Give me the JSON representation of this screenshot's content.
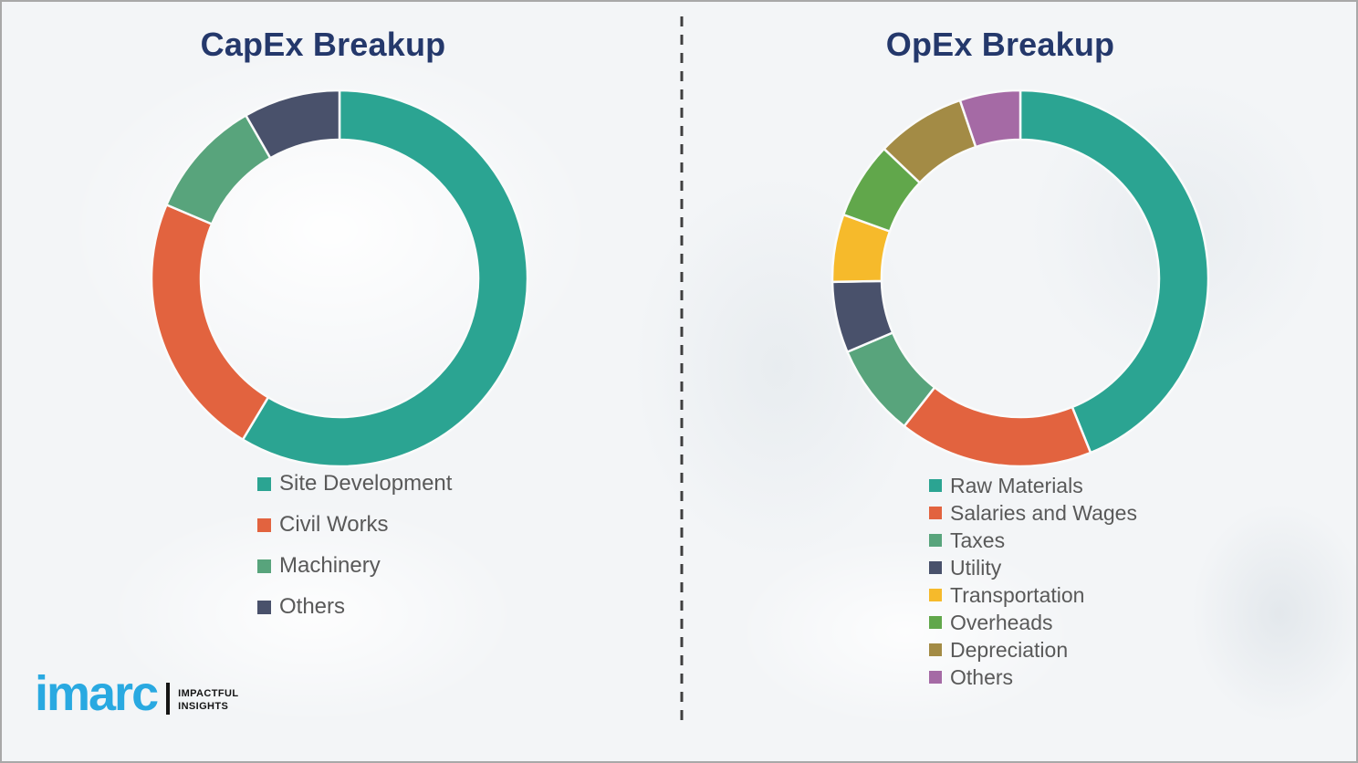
{
  "page": {
    "background_color": "#f3f5f7",
    "frame_border_color": "#a8a8a8",
    "divider_style": "vertical dashed line, center",
    "divider_color": "#3f3f3f"
  },
  "logo": {
    "brand": "imarc",
    "brand_color": "#29A9E1",
    "tagline_line1": "IMPACTFUL",
    "tagline_line2": "INSIGHTS"
  },
  "chart_data": [
    {
      "type": "pie",
      "variant": "donut",
      "title": "CapEx Breakup",
      "title_color": "#24386B",
      "legend_position": "below-left",
      "note": "no numeric labels shown; segment shares estimated from arc angles",
      "categories": [
        "Site Development",
        "Civil Works",
        "Machinery",
        "Others"
      ],
      "values": [
        58.6,
        22.8,
        10.3,
        8.3
      ],
      "colors": [
        "#2BA492",
        "#E2633F",
        "#58A47C",
        "#49516B"
      ]
    },
    {
      "type": "pie",
      "variant": "donut",
      "title": "OpEx Breakup",
      "title_color": "#24386B",
      "legend_position": "below-left",
      "note": "no numeric labels shown; segment shares estimated from arc angles",
      "categories": [
        "Raw Materials",
        "Salaries and Wages",
        "Taxes",
        "Utility",
        "Transportation",
        "Overheads",
        "Depreciation",
        "Others"
      ],
      "values": [
        43.9,
        16.7,
        8.0,
        6.1,
        5.8,
        6.6,
        7.7,
        5.2
      ],
      "colors": [
        "#2BA492",
        "#E2633F",
        "#58A47C",
        "#49516B",
        "#F6BA2B",
        "#61A74B",
        "#A38B45",
        "#A56AA5"
      ]
    }
  ]
}
